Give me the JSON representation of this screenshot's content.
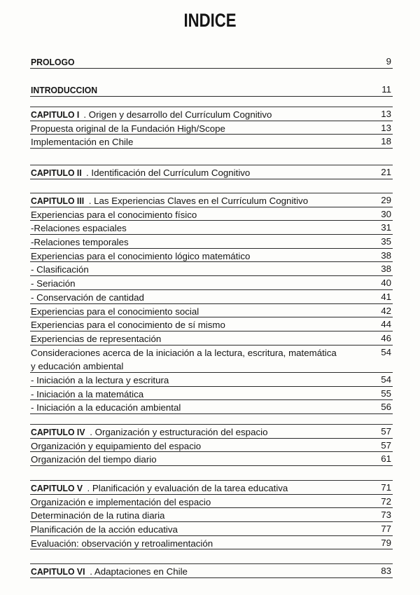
{
  "title": "INDICE",
  "sections": [
    {
      "rows": [
        {
          "bold": "PROLOGO",
          "text": "",
          "page": "9"
        }
      ]
    },
    {
      "rows": [
        {
          "bold": "INTRODUCCION",
          "text": "",
          "page": "11"
        }
      ]
    },
    {
      "rows": [
        {
          "bold": "CAPITULO I",
          "text": ". Origen y desarrollo del Currículum Cognitivo",
          "page": "13"
        },
        {
          "bold": "",
          "text": "Propuesta original de la Fundación High/Scope",
          "page": "13"
        },
        {
          "bold": "",
          "text": "Implementación en Chile",
          "page": "18"
        }
      ]
    },
    {
      "rows": [
        {
          "bold": "CAPITULO II",
          "text": ". Identificación del Currículum Cognitivo",
          "page": "21"
        }
      ]
    },
    {
      "rows": [
        {
          "bold": "CAPITULO III",
          "text": ". Las Experiencias Claves en el Currículum Cognitivo",
          "page": "29"
        },
        {
          "bold": "",
          "text": "Experiencias para el conocimiento físico",
          "page": "30"
        },
        {
          "bold": "",
          "text": "-Relaciones espaciales",
          "page": "31"
        },
        {
          "bold": "",
          "text": "-Relaciones temporales",
          "page": "35"
        },
        {
          "bold": "",
          "text": "Experiencias para el conocimiento lógico matemático",
          "page": "38"
        },
        {
          "bold": "",
          "text": "- Clasificación",
          "page": "38"
        },
        {
          "bold": "",
          "text": "- Seriación",
          "page": "40"
        },
        {
          "bold": "",
          "text": "- Conservación de cantidad",
          "page": "41"
        },
        {
          "bold": "",
          "text": "Experiencias para el conocimiento social",
          "page": "42"
        },
        {
          "bold": "",
          "text": "Experiencias para el conocimiento de sí mismo",
          "page": "44"
        },
        {
          "bold": "",
          "text": "Experiencias de representación",
          "page": "46"
        },
        {
          "bold": "",
          "text": "Consideraciones acerca de la iniciación a la lectura, escritura, matemática y educación ambiental",
          "page": "54",
          "tall": true
        },
        {
          "bold": "",
          "text": "- Iniciación a la lectura y escritura",
          "page": "54"
        },
        {
          "bold": "",
          "text": "- Iniciación a la matemática",
          "page": "55"
        },
        {
          "bold": "",
          "text": "- Iniciación a la educación ambiental",
          "page": "56"
        }
      ]
    },
    {
      "rows": [
        {
          "bold": "CAPITULO IV",
          "text": ". Organización y estructuración del espacio",
          "page": "57"
        },
        {
          "bold": "",
          "text": "Organización y equipamiento del espacio",
          "page": "57"
        },
        {
          "bold": "",
          "text": "Organización del tiempo diario",
          "page": "61"
        }
      ]
    },
    {
      "rows": [
        {
          "bold": "CAPITULO V",
          "text": ". Planificación y evaluación de la tarea educativa",
          "page": "71"
        },
        {
          "bold": "",
          "text": "Organización e implementación del espacio",
          "page": "72"
        },
        {
          "bold": "",
          "text": "Determinación de la rutina diaria",
          "page": "73"
        },
        {
          "bold": "",
          "text": "Planificación de la acción educativa",
          "page": "77"
        },
        {
          "bold": "",
          "text": "Evaluación: observación y retroalimentación",
          "page": "79"
        }
      ]
    },
    {
      "rows": [
        {
          "bold": "CAPITULO VI",
          "text": ". Adaptaciones en Chile",
          "page": "83"
        }
      ]
    }
  ]
}
